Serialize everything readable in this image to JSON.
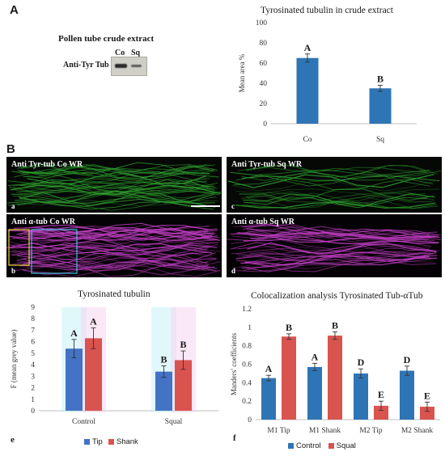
{
  "panels": {
    "A": "A",
    "B": "B",
    "e": "e",
    "f": "f"
  },
  "blot": {
    "title": "Pollen tube crude extract",
    "lanes": [
      "Co",
      "Sq"
    ],
    "antibody": "Anti-Tyr Tub"
  },
  "micrographs": {
    "a": {
      "label": "Anti Tyr-tub Co WR",
      "letter": "a",
      "color": "#2fa32f"
    },
    "b": {
      "label": "Anti α-tub Co WR",
      "letter": "b",
      "color": "#c23fc4"
    },
    "c": {
      "label": "Anti Tyr-tub Sq WR",
      "letter": "c",
      "color": "#2fa32f"
    },
    "d": {
      "label": "Anti α-tub Sq WR",
      "letter": "d",
      "color": "#c23fc4"
    }
  },
  "chart_data": [
    {
      "id": "chartA",
      "type": "bar",
      "title": "Tyrosinated tubulin in crude extract",
      "ylabel": "Mean area %",
      "xlabel": "",
      "ylim": [
        0,
        100
      ],
      "yticks": [
        0,
        20,
        40,
        60,
        80,
        100
      ],
      "categories": [
        "Co",
        "Sq"
      ],
      "series": [
        {
          "values": [
            65,
            35
          ],
          "errors": [
            4,
            3
          ],
          "color": "#2e75b6"
        }
      ],
      "significance": [
        [
          "A"
        ],
        [
          "B"
        ]
      ],
      "grid": false,
      "legend": "none"
    },
    {
      "id": "chartE",
      "type": "bar",
      "title": "Tyrosinated tubulin",
      "ylabel": "F (mean grey value)",
      "xlabel": "",
      "ylim": [
        0,
        9
      ],
      "yticks": [
        0,
        1,
        2,
        3,
        4,
        5,
        6,
        7,
        8,
        9
      ],
      "categories": [
        "Control",
        "Squal"
      ],
      "series": [
        {
          "name": "Tip",
          "values": [
            5.4,
            3.4
          ],
          "errors": [
            0.8,
            0.5
          ],
          "color": "#4472c4"
        },
        {
          "name": "Shank",
          "values": [
            6.3,
            4.4
          ],
          "errors": [
            0.9,
            0.8
          ],
          "color": "#d9534f"
        }
      ],
      "significance": [
        [
          "A",
          "A"
        ],
        [
          "B",
          "B"
        ]
      ],
      "grid": false,
      "legend": "bottom"
    },
    {
      "id": "chartF",
      "type": "bar",
      "title": "Colocalization analysis Tyrosinated Tub-αTub",
      "ylabel": "Manders' coefficients",
      "xlabel": "",
      "ylim": [
        0,
        1.2
      ],
      "yticks": [
        0,
        0.2,
        0.4,
        0.6,
        0.8,
        1,
        1.2
      ],
      "categories": [
        "M1 Tip",
        "M1 Shank",
        "M2 Tip",
        "M2 Shank"
      ],
      "series": [
        {
          "name": "Control",
          "values": [
            0.45,
            0.57,
            0.5,
            0.53
          ],
          "errors": [
            0.03,
            0.04,
            0.05,
            0.05
          ],
          "color": "#2e75b6"
        },
        {
          "name": "Squal",
          "values": [
            0.9,
            0.91,
            0.15,
            0.14
          ],
          "errors": [
            0.03,
            0.04,
            0.05,
            0.05
          ],
          "color": "#d9534f"
        }
      ],
      "significance": [
        [
          "A",
          "B"
        ],
        [
          "A",
          "B"
        ],
        [
          "D",
          "E"
        ],
        [
          "D",
          "E"
        ]
      ],
      "grid": false,
      "legend": "bottom"
    }
  ]
}
